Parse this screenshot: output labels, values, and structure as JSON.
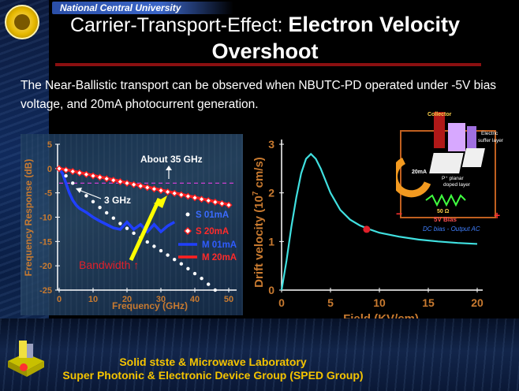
{
  "header": {
    "university": "National Central University",
    "title_prefix": "Carrier-Transport-Effect: ",
    "title_main": "Electron Velocity",
    "title_line2": "Overshoot"
  },
  "body_text": "The Near-Ballistic transport can be observed when NBUTC-PD operated under -5V bias voltage, and 20mA photocurrent generation.",
  "colors": {
    "title_rule": "#8b0f10",
    "footer_text": "#f5c400",
    "annotation_red": "#e0202a",
    "cyan_curve": "#40e0e0"
  },
  "left_chart": {
    "ylabel": "Frequency Response (dB)",
    "xlabel": "Frequency (GHz)",
    "xticks": [
      "0",
      "10",
      "20",
      "30",
      "40",
      "50"
    ],
    "yticks": [
      "5",
      "0",
      "-5",
      "-10",
      "-15",
      "-20",
      "-25"
    ],
    "annotations": {
      "about": "About 35 GHz",
      "three_ghz": "3 GHz",
      "bandwidth": "Bandwidth ↑"
    },
    "legend": [
      "S 01mA",
      "S 20mA",
      "M 01mA",
      "M 20mA"
    ]
  },
  "right_chart": {
    "ylabel_pre": "Drift velocity (10",
    "ylabel_sup": "7",
    "ylabel_post": " cm/s)",
    "xlabel": "Field (KV/cm)",
    "xticks": [
      "0",
      "5",
      "10",
      "15",
      "20"
    ],
    "yticks": [
      "0",
      "1",
      "2",
      "3"
    ]
  },
  "inset": {
    "collector": "Collector",
    "electric_layer_1": "Electric",
    "electric_layer_2": "suffer layer",
    "current": "20mA",
    "p_planar_1": "P⁺ planar",
    "p_planar_2": "doped layer",
    "resistor": "50 Ω",
    "bias": "5V Bias",
    "dc_label": "DC bias - Output AC",
    "minus": "−",
    "plus": "+"
  },
  "footer": {
    "line1": "Solid stste & Microwave Laboratory",
    "line2": "Super Photonic & Electronic Device Group (SPED Group)"
  },
  "chart_data": [
    {
      "type": "scatter",
      "title": "",
      "xlabel": "Frequency (GHz)",
      "ylabel": "Frequency Response (dB)",
      "xlim": [
        -2,
        55
      ],
      "ylim": [
        -25,
        5
      ],
      "legend_position": "right",
      "series": [
        {
          "name": "S 01mA",
          "color": "#ffffff",
          "style": "dots",
          "x": [
            0,
            2,
            4,
            6,
            8,
            10,
            12,
            14,
            16,
            18,
            20,
            22,
            24,
            26,
            28,
            30,
            32,
            34,
            36,
            38,
            40,
            42,
            44,
            46
          ],
          "y": [
            0,
            -1.5,
            -3,
            -4.4,
            -5.6,
            -6.8,
            -8,
            -9.1,
            -10.2,
            -11.3,
            -12.3,
            -13.3,
            -14.2,
            -15.1,
            -16,
            -16.9,
            -17.8,
            -18.7,
            -19.6,
            -20.6,
            -21.6,
            -22.6,
            -23.8,
            -25
          ]
        },
        {
          "name": "S 20mA",
          "color": "#ff2020",
          "style": "diamonds",
          "x": [
            0,
            2,
            4,
            6,
            8,
            10,
            12,
            14,
            16,
            18,
            20,
            22,
            24,
            26,
            28,
            30,
            32,
            34,
            36,
            38,
            40,
            42,
            44,
            46,
            48,
            50
          ],
          "y": [
            0,
            -0.3,
            -0.6,
            -0.9,
            -1.2,
            -1.5,
            -1.8,
            -2.1,
            -2.4,
            -2.7,
            -3.0,
            -3.3,
            -3.6,
            -3.9,
            -4.2,
            -4.5,
            -4.8,
            -5.1,
            -5.4,
            -5.7,
            -6.0,
            -6.3,
            -6.6,
            -6.9,
            -7.2,
            -7.5
          ]
        },
        {
          "name": "M 01mA",
          "color": "#2040ff",
          "style": "line",
          "x": [
            0,
            1,
            2,
            3,
            4,
            5,
            6,
            8,
            10,
            12,
            14,
            16,
            18,
            20,
            22,
            24,
            26,
            28,
            30,
            32,
            34
          ],
          "y": [
            0,
            -1,
            -3,
            -5,
            -6.5,
            -7.5,
            -8.2,
            -9,
            -10,
            -10.8,
            -11.5,
            -12.2,
            -12.5,
            -11,
            -12.5,
            -11.5,
            -13,
            -11.5,
            -13,
            -11.8,
            -11
          ]
        },
        {
          "name": "M 20mA",
          "color": "#ff2020",
          "style": "line",
          "x": [
            0,
            2,
            4,
            6,
            8,
            10,
            12,
            14,
            16,
            18,
            20,
            22,
            24,
            26,
            28,
            30,
            32,
            34,
            36,
            38,
            40,
            42,
            44,
            46,
            48,
            50
          ],
          "y": [
            0,
            -0.2,
            -0.5,
            -0.8,
            -1.1,
            -1.4,
            -1.7,
            -2.0,
            -2.3,
            -2.6,
            -2.9,
            -3.2,
            -3.5,
            -3.8,
            -4.1,
            -4.4,
            -4.7,
            -5.0,
            -5.3,
            -5.6,
            -5.9,
            -6.2,
            -6.5,
            -6.8,
            -7.1,
            -7.4
          ]
        }
      ],
      "reference_level_db": -3
    },
    {
      "type": "line",
      "title": "",
      "xlabel": "Field (KV/cm)",
      "ylabel": "Drift velocity (10^7 cm/s)",
      "xlim": [
        0,
        20
      ],
      "ylim": [
        0,
        3
      ],
      "series": [
        {
          "color": "#40e0e0",
          "x": [
            0,
            0.5,
            1,
            1.5,
            2,
            2.5,
            3,
            3.5,
            4,
            5,
            6,
            7,
            8,
            9,
            10,
            12,
            14,
            16,
            18,
            20
          ],
          "y": [
            0,
            0.6,
            1.3,
            1.9,
            2.4,
            2.7,
            2.8,
            2.7,
            2.5,
            2.0,
            1.65,
            1.45,
            1.33,
            1.25,
            1.18,
            1.1,
            1.04,
            1.0,
            0.97,
            0.95
          ]
        }
      ],
      "marker": {
        "x": 8.7,
        "y": 1.25,
        "color": "#e0202a"
      }
    }
  ]
}
